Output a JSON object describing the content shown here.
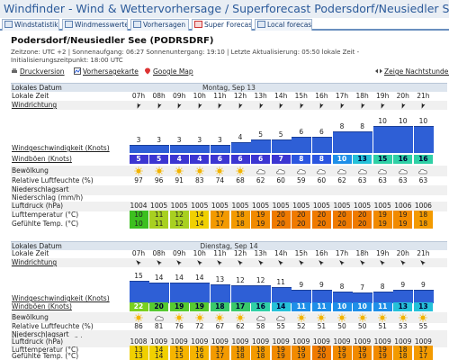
{
  "title": "Windfinder - Wind & Wettervorhersage / Superforecast Podersdorf/Neusiedler See",
  "tabs": [
    {
      "label": "Windstatistik",
      "icon": "statistics-icon",
      "active": false
    },
    {
      "label": "Windmesswerte",
      "icon": "measurement-icon",
      "active": false
    },
    {
      "label": "Vorhersagen",
      "icon": "forecast-icon",
      "active": false
    },
    {
      "label": "Super Forecast",
      "icon": "superforecast-icon",
      "active": true
    },
    {
      "label": "Local forecasts",
      "icon": "search-icon",
      "active": false
    }
  ],
  "station": "Podersdorf/Neusiedler See (PODRSDRF)",
  "meta_line1": "Zeitzone: UTC +2 | Sonnenaufgang: 06:27 Sonnenuntergang: 19:10 | Letzte Aktualisierung: 05:50 lokale Zeit -",
  "meta_line2": "Initialisierungszeitpunkt: 18:00 UTC",
  "links": {
    "print": "Druckversion",
    "map": "Vorhersagekarte",
    "google": "Google Map",
    "night": "Zeige Nachtstunden"
  },
  "labels": {
    "date": "Lokales Datum",
    "time": "Lokale Zeit",
    "direction": "Windrichtung",
    "speed": "Windgeschwindigkeit (Knots)",
    "gusts": "Windböen (Knots)",
    "cloud": "Bewölkung",
    "humidity": "Relative Luftfeuchte (%)",
    "precip_type": "Niederschlagsart",
    "precip": "Niederschlag (mm/h)",
    "pressure": "Luftdruck (hPa)",
    "temp": "Lufttemperatur (°C)",
    "feels": "Gefühlte Temp. (°C)"
  },
  "hours": [
    "07h",
    "08h",
    "09h",
    "10h",
    "11h",
    "12h",
    "13h",
    "14h",
    "15h",
    "16h",
    "17h",
    "18h",
    "19h",
    "20h",
    "21h"
  ],
  "days": [
    {
      "date": "Montag, Sep 13",
      "directions": [
        200,
        200,
        200,
        200,
        200,
        200,
        200,
        200,
        200,
        200,
        200,
        200,
        200,
        200,
        200
      ],
      "speed": [
        3,
        3,
        3,
        3,
        3,
        4,
        5,
        5,
        6,
        6,
        8,
        8,
        10,
        10,
        10
      ],
      "gusts": [
        5,
        5,
        4,
        4,
        6,
        6,
        6,
        7,
        8,
        8,
        10,
        13,
        15,
        16,
        16
      ],
      "clouds": [
        "sun",
        "sun",
        "sun",
        "sun",
        "sun",
        "sun",
        "cloud",
        "cloud",
        "cloud",
        "cloud",
        "cloud",
        "cloud",
        "cloud",
        "cloud",
        "cloud"
      ],
      "humidity": [
        97,
        96,
        91,
        83,
        74,
        68,
        62,
        60,
        59,
        60,
        62,
        63,
        63,
        63,
        63
      ],
      "pressure": [
        1004,
        1005,
        1005,
        1005,
        1005,
        1005,
        1005,
        1005,
        1005,
        1005,
        1005,
        1005,
        1005,
        1006,
        1006
      ],
      "temp": [
        10,
        11,
        12,
        14,
        17,
        18,
        19,
        20,
        20,
        20,
        20,
        20,
        19,
        19,
        18
      ],
      "feels": [
        10,
        11,
        12,
        14,
        17,
        18,
        19,
        20,
        20,
        20,
        20,
        20,
        19,
        19,
        18
      ]
    },
    {
      "date": "Dienstag, Sep 14",
      "directions": [
        315,
        315,
        315,
        315,
        315,
        315,
        315,
        315,
        315,
        315,
        315,
        315,
        315,
        315,
        315
      ],
      "speed": [
        15,
        14,
        14,
        14,
        13,
        12,
        12,
        11,
        9,
        9,
        8,
        7,
        8,
        9,
        9
      ],
      "gusts": [
        22,
        20,
        19,
        19,
        18,
        17,
        16,
        14,
        11,
        11,
        10,
        10,
        11,
        13,
        13
      ],
      "clouds": [
        "sun",
        "cloud",
        "sun",
        "sun",
        "sun",
        "sun",
        "cloud",
        "cloud",
        "sun",
        "sun",
        "sun",
        "sun",
        "sun",
        "sun",
        "sun"
      ],
      "humidity": [
        86,
        81,
        76,
        72,
        67,
        62,
        58,
        55,
        52,
        51,
        50,
        50,
        51,
        53,
        55
      ],
      "pressure": [
        1008,
        1009,
        1009,
        1009,
        1009,
        1009,
        1009,
        1009,
        1009,
        1009,
        1009,
        1009,
        1009,
        1009,
        1009
      ],
      "temp": [
        13,
        14,
        15,
        16,
        17,
        18,
        18,
        19,
        19,
        20,
        19,
        19,
        19,
        18,
        17
      ],
      "feels": [
        13,
        14,
        15,
        16,
        17,
        18,
        18,
        19,
        19,
        20,
        19,
        19,
        19,
        18,
        17
      ]
    }
  ],
  "colors": {
    "accent": "#2b5a9a",
    "bar": "#2e5fd6"
  }
}
